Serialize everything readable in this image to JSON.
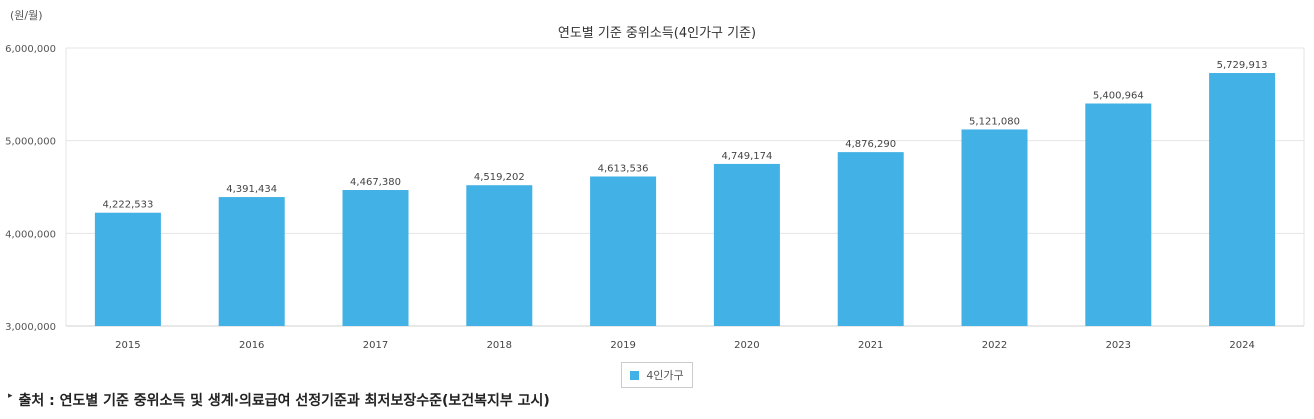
{
  "chart_data": {
    "type": "bar",
    "title": "연도별 기준 중위소득(4인가구 기준)",
    "unit_label": "(원/월)",
    "xlabel": "",
    "ylabel": "",
    "categories": [
      "2015",
      "2016",
      "2017",
      "2018",
      "2019",
      "2020",
      "2021",
      "2022",
      "2023",
      "2024"
    ],
    "series": [
      {
        "name": "4인가구",
        "values": [
          4222533,
          4391434,
          4467380,
          4519202,
          4613536,
          4749174,
          4876290,
          5121080,
          5400964,
          5729913
        ],
        "labels": [
          "4,222,533",
          "4,391,434",
          "4,467,380",
          "4,519,202",
          "4,613,536",
          "4,749,174",
          "4,876,290",
          "5,121,080",
          "5,400,964",
          "5,729,913"
        ]
      }
    ],
    "ylim": [
      3000000,
      6000000
    ],
    "yticks": [
      3000000,
      4000000,
      5000000,
      6000000
    ],
    "ytick_labels": [
      "3,000,000",
      "4,000,000",
      "5,000,000",
      "6,000,000"
    ],
    "grid": true,
    "legend_position": "bottom-center",
    "bar_color": "#41B1E6"
  },
  "legend": {
    "label": "4인가구",
    "color": "#41B1E6"
  },
  "source": {
    "bullet": "▸",
    "text": "출처 : 연도별 기준 중위소득 및 생계·의료급여 선정기준과 최저보장수준(보건복지부 고시)"
  }
}
